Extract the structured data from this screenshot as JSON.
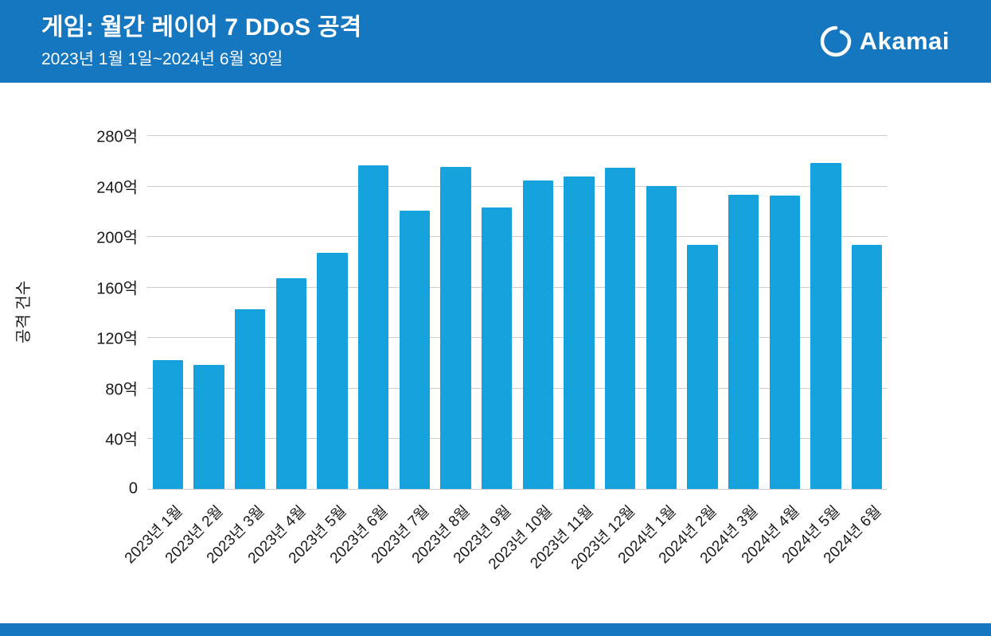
{
  "header": {
    "title": "게임: 월간 레이어 7 DDoS 공격",
    "subtitle": "2023년 1월 1일~2024년 6월 30일",
    "brand": "Akamai",
    "background_color": "#1577c0"
  },
  "chart_data": {
    "type": "bar",
    "title": "게임: 월간 레이어 7 DDoS 공격",
    "subtitle": "2023년 1월 1일~2024년 6월 30일",
    "ylabel": "공격 건수",
    "xlabel": "",
    "unit": "억",
    "categories": [
      "2023년 1월",
      "2023년 2월",
      "2023년 3월",
      "2023년 4월",
      "2023년 5월",
      "2023년 6월",
      "2023년 7월",
      "2023년 8월",
      "2023년 9월",
      "2023년 10월",
      "2023년 11월",
      "2023년 12월",
      "2024년 1월",
      "2024년 2월",
      "2024년 3월",
      "2024년 4월",
      "2024년 5월",
      "2024년 6월"
    ],
    "values": [
      102,
      98,
      142,
      167,
      187,
      256,
      220,
      255,
      223,
      244,
      247,
      254,
      240,
      193,
      233,
      232,
      258,
      193
    ],
    "ylim": [
      0,
      280
    ],
    "ytick_step": 40,
    "ytick_labels": [
      "0",
      "40억",
      "80억",
      "120억",
      "160억",
      "200억",
      "240억",
      "280억"
    ],
    "grid": "horizontal",
    "legend": "none",
    "bar_color": "#16a3dd"
  }
}
